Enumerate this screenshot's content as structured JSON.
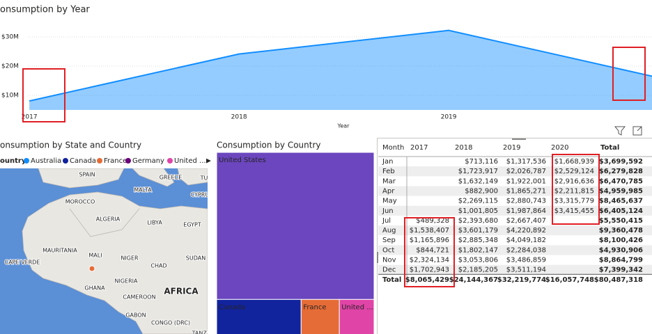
{
  "chart_data": [
    {
      "type": "area",
      "title": "onsumption by Year",
      "x_label": "Year",
      "x": [
        2017,
        2018,
        2019,
        2020
      ],
      "values": [
        8065429,
        24144367,
        32219774,
        16057748
      ],
      "color": "#118DFF",
      "xlim": [
        2016.86,
        2019.97
      ],
      "xticks": [
        2017,
        2018,
        2019
      ],
      "ylim": [
        5000000,
        35000000
      ],
      "yticks": [
        {
          "value": 10000000,
          "label": "$10M"
        },
        {
          "value": 20000000,
          "label": "$20M"
        },
        {
          "value": 30000000,
          "label": "$30M"
        }
      ],
      "grid": true
    },
    {
      "type": "treemap",
      "title": "Consumption by Country",
      "categories": [
        "United States",
        "Canada",
        "France",
        "United ..."
      ],
      "values": [
        62700000,
        9500000,
        4300000,
        3900000
      ],
      "colors": [
        "#6B46BE",
        "#12239E",
        "#E66C37",
        "#E044A7"
      ]
    }
  ],
  "map": {
    "title": "onsumption by State and Country",
    "legend_title": "ountry",
    "legend": [
      {
        "name": "Australia",
        "color": "#118DFF"
      },
      {
        "name": "Canada",
        "color": "#12239E"
      },
      {
        "name": "France",
        "color": "#E66C37"
      },
      {
        "name": "Germany",
        "color": "#6B007B"
      },
      {
        "name": "United ...",
        "color": "#E044A7"
      }
    ],
    "labels": [
      "SPAIN",
      "GREECE",
      "TU",
      "MALTA",
      "CYPRU",
      "MOROCCO",
      "ALGERIA",
      "LIBYA",
      "EGYPT",
      "MAURITANIA",
      "MALI",
      "NIGER",
      "CHAD",
      "SUDAN",
      "CAPE VERDE",
      "NIGERIA",
      "GHANA",
      "AFRICA",
      "CAMEROON",
      "GABON",
      "CONGO (DRC)",
      "TANZA"
    ]
  },
  "table": {
    "columns": [
      "Month",
      "2017",
      "2018",
      "2019",
      "2020",
      "Total"
    ],
    "rows": [
      [
        "Jan",
        null,
        "$713,116",
        "$1,317,536",
        "$1,668,939",
        "$3,699,592"
      ],
      [
        "Feb",
        null,
        "$1,723,917",
        "$2,026,787",
        "$2,529,124",
        "$6,279,828"
      ],
      [
        "Mar",
        null,
        "$1,632,149",
        "$1,922,001",
        "$2,916,636",
        "$6,470,785"
      ],
      [
        "Apr",
        null,
        "$882,900",
        "$1,865,271",
        "$2,211,815",
        "$4,959,985"
      ],
      [
        "May",
        null,
        "$2,269,115",
        "$2,880,743",
        "$3,315,779",
        "$8,465,637"
      ],
      [
        "Jun",
        null,
        "$1,001,805",
        "$1,987,864",
        "$3,415,455",
        "$6,405,124"
      ],
      [
        "Jul",
        "$489,328",
        "$2,393,680",
        "$2,667,407",
        null,
        "$5,550,415"
      ],
      [
        "Aug",
        "$1,538,407",
        "$3,601,179",
        "$4,220,892",
        null,
        "$9,360,478"
      ],
      [
        "Sep",
        "$1,165,896",
        "$2,885,348",
        "$4,049,182",
        null,
        "$8,100,426"
      ],
      [
        "Oct",
        "$844,721",
        "$1,802,147",
        "$2,284,038",
        null,
        "$4,930,906"
      ],
      [
        "Nov",
        "$2,324,134",
        "$3,053,806",
        "$3,486,859",
        null,
        "$8,864,799"
      ],
      [
        "Dec",
        "$1,702,943",
        "$2,185,205",
        "$3,511,194",
        null,
        "$7,399,342"
      ],
      [
        "Total",
        "$8,065,429",
        "$24,144,367",
        "$32,219,774",
        "$16,057,748",
        "$80,487,318"
      ]
    ]
  }
}
